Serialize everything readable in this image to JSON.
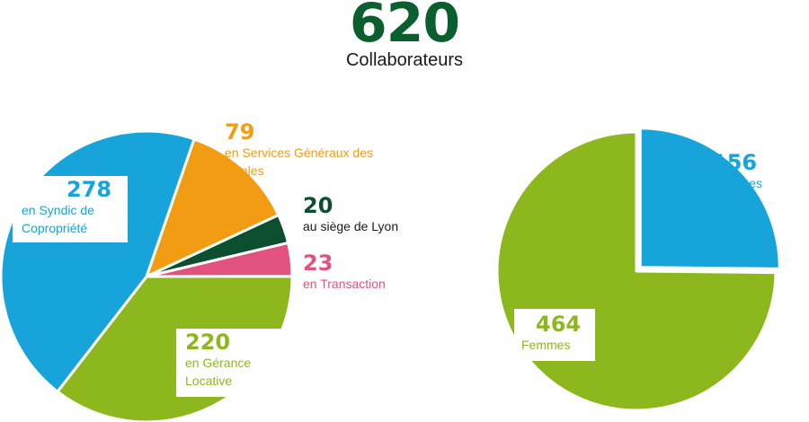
{
  "header": {
    "total": "620",
    "total_label": "Collaborateurs"
  },
  "colors": {
    "syndic": "#16a4da",
    "services": "#f29c13",
    "siege": "#0b4f2e",
    "transaction": "#e2527e",
    "gerance": "#8cb81e",
    "hommes": "#16a4da",
    "femmes": "#8cb81e"
  },
  "chart_data": [
    {
      "type": "pie",
      "slices": [
        {
          "key": "services",
          "value": 79,
          "number": "79",
          "label": "en Services Généraux des Filiales"
        },
        {
          "key": "siege",
          "value": 20,
          "number": "20",
          "label": "au siège de Lyon"
        },
        {
          "key": "transaction",
          "value": 23,
          "number": "23",
          "label": "en Transaction"
        },
        {
          "key": "gerance",
          "value": 220,
          "number": "220",
          "label": "en Gérance Locative"
        },
        {
          "key": "syndic",
          "value": 278,
          "number": "278",
          "label": "en Syndic de Copropriété"
        }
      ]
    },
    {
      "type": "pie",
      "slices": [
        {
          "key": "hommes",
          "value": 156,
          "number": "156",
          "label": "Hommes"
        },
        {
          "key": "femmes",
          "value": 464,
          "number": "464",
          "label": "Femmes"
        }
      ]
    }
  ]
}
